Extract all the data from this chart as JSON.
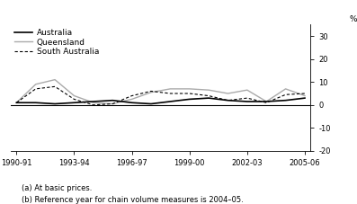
{
  "x_tick_positions": [
    0,
    3,
    6,
    9,
    12,
    15
  ],
  "x_labels": [
    "1990-91",
    "1993-94",
    "1996-97",
    "1999-00",
    "2002-03",
    "2005-06"
  ],
  "australia": [
    1.0,
    1.0,
    0.5,
    1.0,
    1.5,
    2.0,
    1.0,
    0.5,
    1.5,
    2.5,
    3.0,
    2.0,
    1.5,
    1.5,
    2.0,
    3.0
  ],
  "queensland": [
    1.0,
    9.0,
    11.0,
    4.0,
    1.0,
    0.5,
    2.5,
    5.5,
    7.0,
    7.0,
    6.5,
    5.0,
    6.5,
    1.5,
    7.0,
    4.0
  ],
  "south_australia": [
    1.0,
    7.0,
    8.0,
    2.5,
    0.0,
    0.5,
    4.0,
    6.0,
    5.0,
    5.0,
    4.0,
    2.0,
    3.0,
    1.0,
    4.5,
    5.0
  ],
  "australia_color": "#000000",
  "queensland_color": "#aaaaaa",
  "south_australia_color": "#000000",
  "ylim": [
    -20,
    35
  ],
  "yticks": [
    -20,
    -10,
    0,
    10,
    20,
    30
  ],
  "footnote1": "(a) At basic prices.",
  "footnote2": "(b) Reference year for chain volume measures is 2004–05.",
  "legend_australia": "Australia",
  "legend_queensland": "Queensland",
  "legend_south_australia": "South Australia"
}
